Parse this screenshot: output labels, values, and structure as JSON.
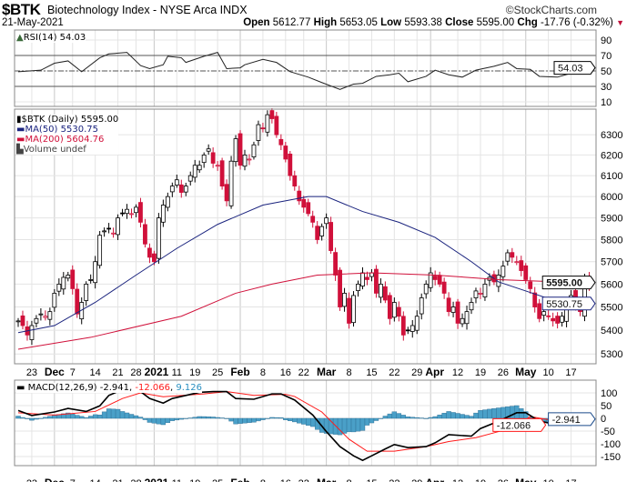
{
  "header": {
    "symbol": "$BTK",
    "name": "Biotechnology Index - NYSE Arca  INDX",
    "copyright": "©StockCharts.com",
    "date": "21-May-2021",
    "open_label": "Open",
    "open": "5612.77",
    "high_label": "High",
    "high": "5653.05",
    "low_label": "Low",
    "low": "5593.38",
    "close_label": "Close",
    "close": "5595.00",
    "chg_label": "Chg",
    "chg": "-17.76 (-0.32%)",
    "chg_icon": "down-triangle-icon"
  },
  "colors": {
    "up": "#000000",
    "down": "#d0103a",
    "ma50": "#1a237e",
    "ma200": "#d0103a",
    "macd": "#000000",
    "signal": "#ff1a1a",
    "hist": "#4aa0c8",
    "hist_text": "#2a8fc0"
  },
  "chart_data": [
    {
      "type": "line",
      "title": "RSI(14) 54.03",
      "legend": "RSI(14) 54.03",
      "ylim": [
        0,
        100
      ],
      "yticks": [
        10,
        30,
        50,
        70,
        90
      ],
      "ref_lines": [
        30,
        50,
        70
      ],
      "last_label": "54.03",
      "series": [
        {
          "name": "RSI(14)",
          "points": [
            [
              0,
              49
            ],
            [
              5,
              51
            ],
            [
              8,
              60
            ],
            [
              11,
              63
            ],
            [
              14,
              49
            ],
            [
              18,
              67
            ],
            [
              20,
              72
            ],
            [
              24,
              74
            ],
            [
              27,
              57
            ],
            [
              29,
              53
            ],
            [
              32,
              58
            ],
            [
              33,
              69
            ],
            [
              36,
              67
            ],
            [
              37,
              61
            ],
            [
              41,
              69
            ],
            [
              44,
              74
            ],
            [
              46,
              53
            ],
            [
              49,
              54
            ],
            [
              50,
              58
            ],
            [
              54,
              65
            ],
            [
              57,
              61
            ],
            [
              60,
              49
            ],
            [
              64,
              42
            ],
            [
              67,
              35
            ],
            [
              71,
              26
            ],
            [
              74,
              33
            ],
            [
              76,
              34
            ],
            [
              79,
              43
            ],
            [
              82,
              45
            ],
            [
              84,
              47
            ],
            [
              86,
              36
            ],
            [
              90,
              43
            ],
            [
              92,
              51
            ],
            [
              95,
              45
            ],
            [
              98,
              42
            ],
            [
              101,
              51
            ],
            [
              105,
              56
            ],
            [
              108,
              61
            ],
            [
              110,
              53
            ],
            [
              113,
              52
            ],
            [
              115,
              43
            ],
            [
              119,
              42
            ],
            [
              122,
              47
            ],
            [
              125,
              48
            ],
            [
              126,
              54.03
            ]
          ]
        }
      ]
    },
    {
      "type": "candlestick",
      "title": "$BTK (Daily) 5595.00",
      "scale": "log",
      "ylim": [
        5250,
        6450
      ],
      "yticks": [
        5300,
        5400,
        5500,
        5600,
        5700,
        5800,
        5900,
        6000,
        6100,
        6200,
        6300
      ],
      "legend": [
        "$BTK (Daily) 5595.00",
        "MA(50) 5530.75",
        "MA(200) 5604.76",
        "Volume undef"
      ],
      "last_labels": {
        "close": "5595.00",
        "ma50": "5530.75"
      },
      "closes": [
        5440,
        5420,
        5380,
        5420,
        5450,
        5470,
        5460,
        5480,
        5560,
        5600,
        5630,
        5640,
        5580,
        5470,
        5520,
        5600,
        5620,
        5700,
        5820,
        5840,
        5850,
        5830,
        5900,
        5920,
        5940,
        5920,
        5950,
        5880,
        5780,
        5720,
        5700,
        5900,
        5960,
        6000,
        6050,
        6080,
        6020,
        6050,
        6100,
        6150,
        6150,
        6200,
        6230,
        6160,
        6150,
        6050,
        5980,
        6170,
        6280,
        6150,
        6200,
        6180,
        6250,
        6350,
        6330,
        6400,
        6380,
        6300,
        6250,
        6180,
        6100,
        6050,
        5980,
        5950,
        5920,
        5880,
        5800,
        5860,
        5900,
        5750,
        5640,
        5500,
        5560,
        5430,
        5550,
        5600,
        5650,
        5620,
        5650,
        5560,
        5600,
        5530,
        5450,
        5520,
        5460,
        5380,
        5400,
        5420,
        5460,
        5540,
        5600,
        5650,
        5620,
        5600,
        5560,
        5480,
        5500,
        5430,
        5450,
        5480,
        5520,
        5570,
        5560,
        5600,
        5630,
        5610,
        5640,
        5680,
        5740,
        5720,
        5700,
        5660,
        5620,
        5580,
        5500,
        5450,
        5480,
        5460,
        5440,
        5430,
        5460,
        5510,
        5550,
        5510,
        5480,
        5620,
        5595
      ],
      "ma50": [
        [
          0,
          5390
        ],
        [
          8,
          5420
        ],
        [
          17,
          5520
        ],
        [
          26,
          5640
        ],
        [
          35,
          5760
        ],
        [
          44,
          5870
        ],
        [
          54,
          5960
        ],
        [
          64,
          6000
        ],
        [
          68,
          6000
        ],
        [
          76,
          5930
        ],
        [
          84,
          5880
        ],
        [
          92,
          5810
        ],
        [
          100,
          5700
        ],
        [
          106,
          5610
        ],
        [
          112,
          5570
        ],
        [
          118,
          5530
        ],
        [
          126,
          5530.75
        ]
      ],
      "ma200": [
        [
          0,
          5320
        ],
        [
          16,
          5370
        ],
        [
          36,
          5460
        ],
        [
          48,
          5560
        ],
        [
          56,
          5600
        ],
        [
          66,
          5640
        ],
        [
          78,
          5650
        ],
        [
          92,
          5640
        ],
        [
          106,
          5620
        ],
        [
          126,
          5604.76
        ]
      ]
    },
    {
      "type": "line",
      "title": "MACD(12,26,9)",
      "legend": {
        "name": "MACD(12,26,9)",
        "macd": "-2.941",
        "signal": "-12.066",
        "hist": "9.126"
      },
      "ylim": [
        -170,
        150
      ],
      "yticks": [
        100,
        50,
        0,
        -50,
        -100,
        -150
      ],
      "last_label": "-2.941",
      "macd": [
        [
          0,
          31
        ],
        [
          3,
          11
        ],
        [
          8,
          25
        ],
        [
          11,
          39
        ],
        [
          15,
          27
        ],
        [
          18,
          49
        ],
        [
          20,
          90
        ],
        [
          22,
          105
        ],
        [
          27,
          105
        ],
        [
          29,
          78
        ],
        [
          32,
          60
        ],
        [
          34,
          78
        ],
        [
          37,
          90
        ],
        [
          40,
          102
        ],
        [
          43,
          105
        ],
        [
          46,
          105
        ],
        [
          48,
          78
        ],
        [
          52,
          75
        ],
        [
          56,
          96
        ],
        [
          58,
          96
        ],
        [
          61,
          72
        ],
        [
          65,
          13
        ],
        [
          68,
          -52
        ],
        [
          71,
          -111
        ],
        [
          74,
          -147
        ],
        [
          76,
          -165
        ],
        [
          78,
          -147
        ],
        [
          81,
          -120
        ],
        [
          83,
          -103
        ],
        [
          86,
          -115
        ],
        [
          90,
          -111
        ],
        [
          92,
          -96
        ],
        [
          95,
          -64
        ],
        [
          100,
          -70
        ],
        [
          102,
          -40
        ],
        [
          106,
          -11
        ],
        [
          110,
          22
        ],
        [
          112,
          22
        ],
        [
          115,
          -11
        ],
        [
          119,
          -25
        ],
        [
          122,
          -22
        ],
        [
          125,
          -20
        ],
        [
          126,
          -2.941
        ]
      ],
      "signal": [
        [
          0,
          22
        ],
        [
          8,
          13
        ],
        [
          17,
          27
        ],
        [
          23,
          78
        ],
        [
          27,
          100
        ],
        [
          32,
          85
        ],
        [
          41,
          96
        ],
        [
          46,
          105
        ],
        [
          52,
          90
        ],
        [
          59,
          94
        ],
        [
          61,
          86
        ],
        [
          67,
          25
        ],
        [
          73,
          -82
        ],
        [
          77,
          -129
        ],
        [
          83,
          -129
        ],
        [
          90,
          -111
        ],
        [
          95,
          -91
        ],
        [
          101,
          -76
        ],
        [
          106,
          -52
        ],
        [
          110,
          -28
        ],
        [
          113,
          7
        ],
        [
          119,
          -11
        ],
        [
          122,
          -17
        ],
        [
          126,
          -12.066
        ]
      ]
    }
  ],
  "x_axis": {
    "labels": [
      [
        "23",
        3,
        false
      ],
      [
        "Dec",
        8,
        true
      ],
      [
        "7",
        12,
        false
      ],
      [
        "14",
        17,
        false
      ],
      [
        "21",
        22,
        false
      ],
      [
        "28",
        26,
        false
      ],
      [
        "2021",
        30,
        true
      ],
      [
        "11",
        35,
        false
      ],
      [
        "19",
        39,
        false
      ],
      [
        "25",
        44,
        false
      ],
      [
        "Feb",
        49,
        true
      ],
      [
        "8",
        54,
        false
      ],
      [
        "16",
        59,
        false
      ],
      [
        "22",
        63,
        false
      ],
      [
        "Mar",
        68,
        true
      ],
      [
        "8",
        73,
        false
      ],
      [
        "15",
        78,
        false
      ],
      [
        "22",
        83,
        false
      ],
      [
        "29",
        88,
        false
      ],
      [
        "Apr",
        91,
        true
      ],
      [
        "12",
        97,
        false
      ],
      [
        "19",
        102,
        false
      ],
      [
        "26",
        107,
        false
      ],
      [
        "May",
        112,
        true
      ],
      [
        "10",
        117,
        false
      ],
      [
        "17",
        122,
        false
      ]
    ]
  }
}
